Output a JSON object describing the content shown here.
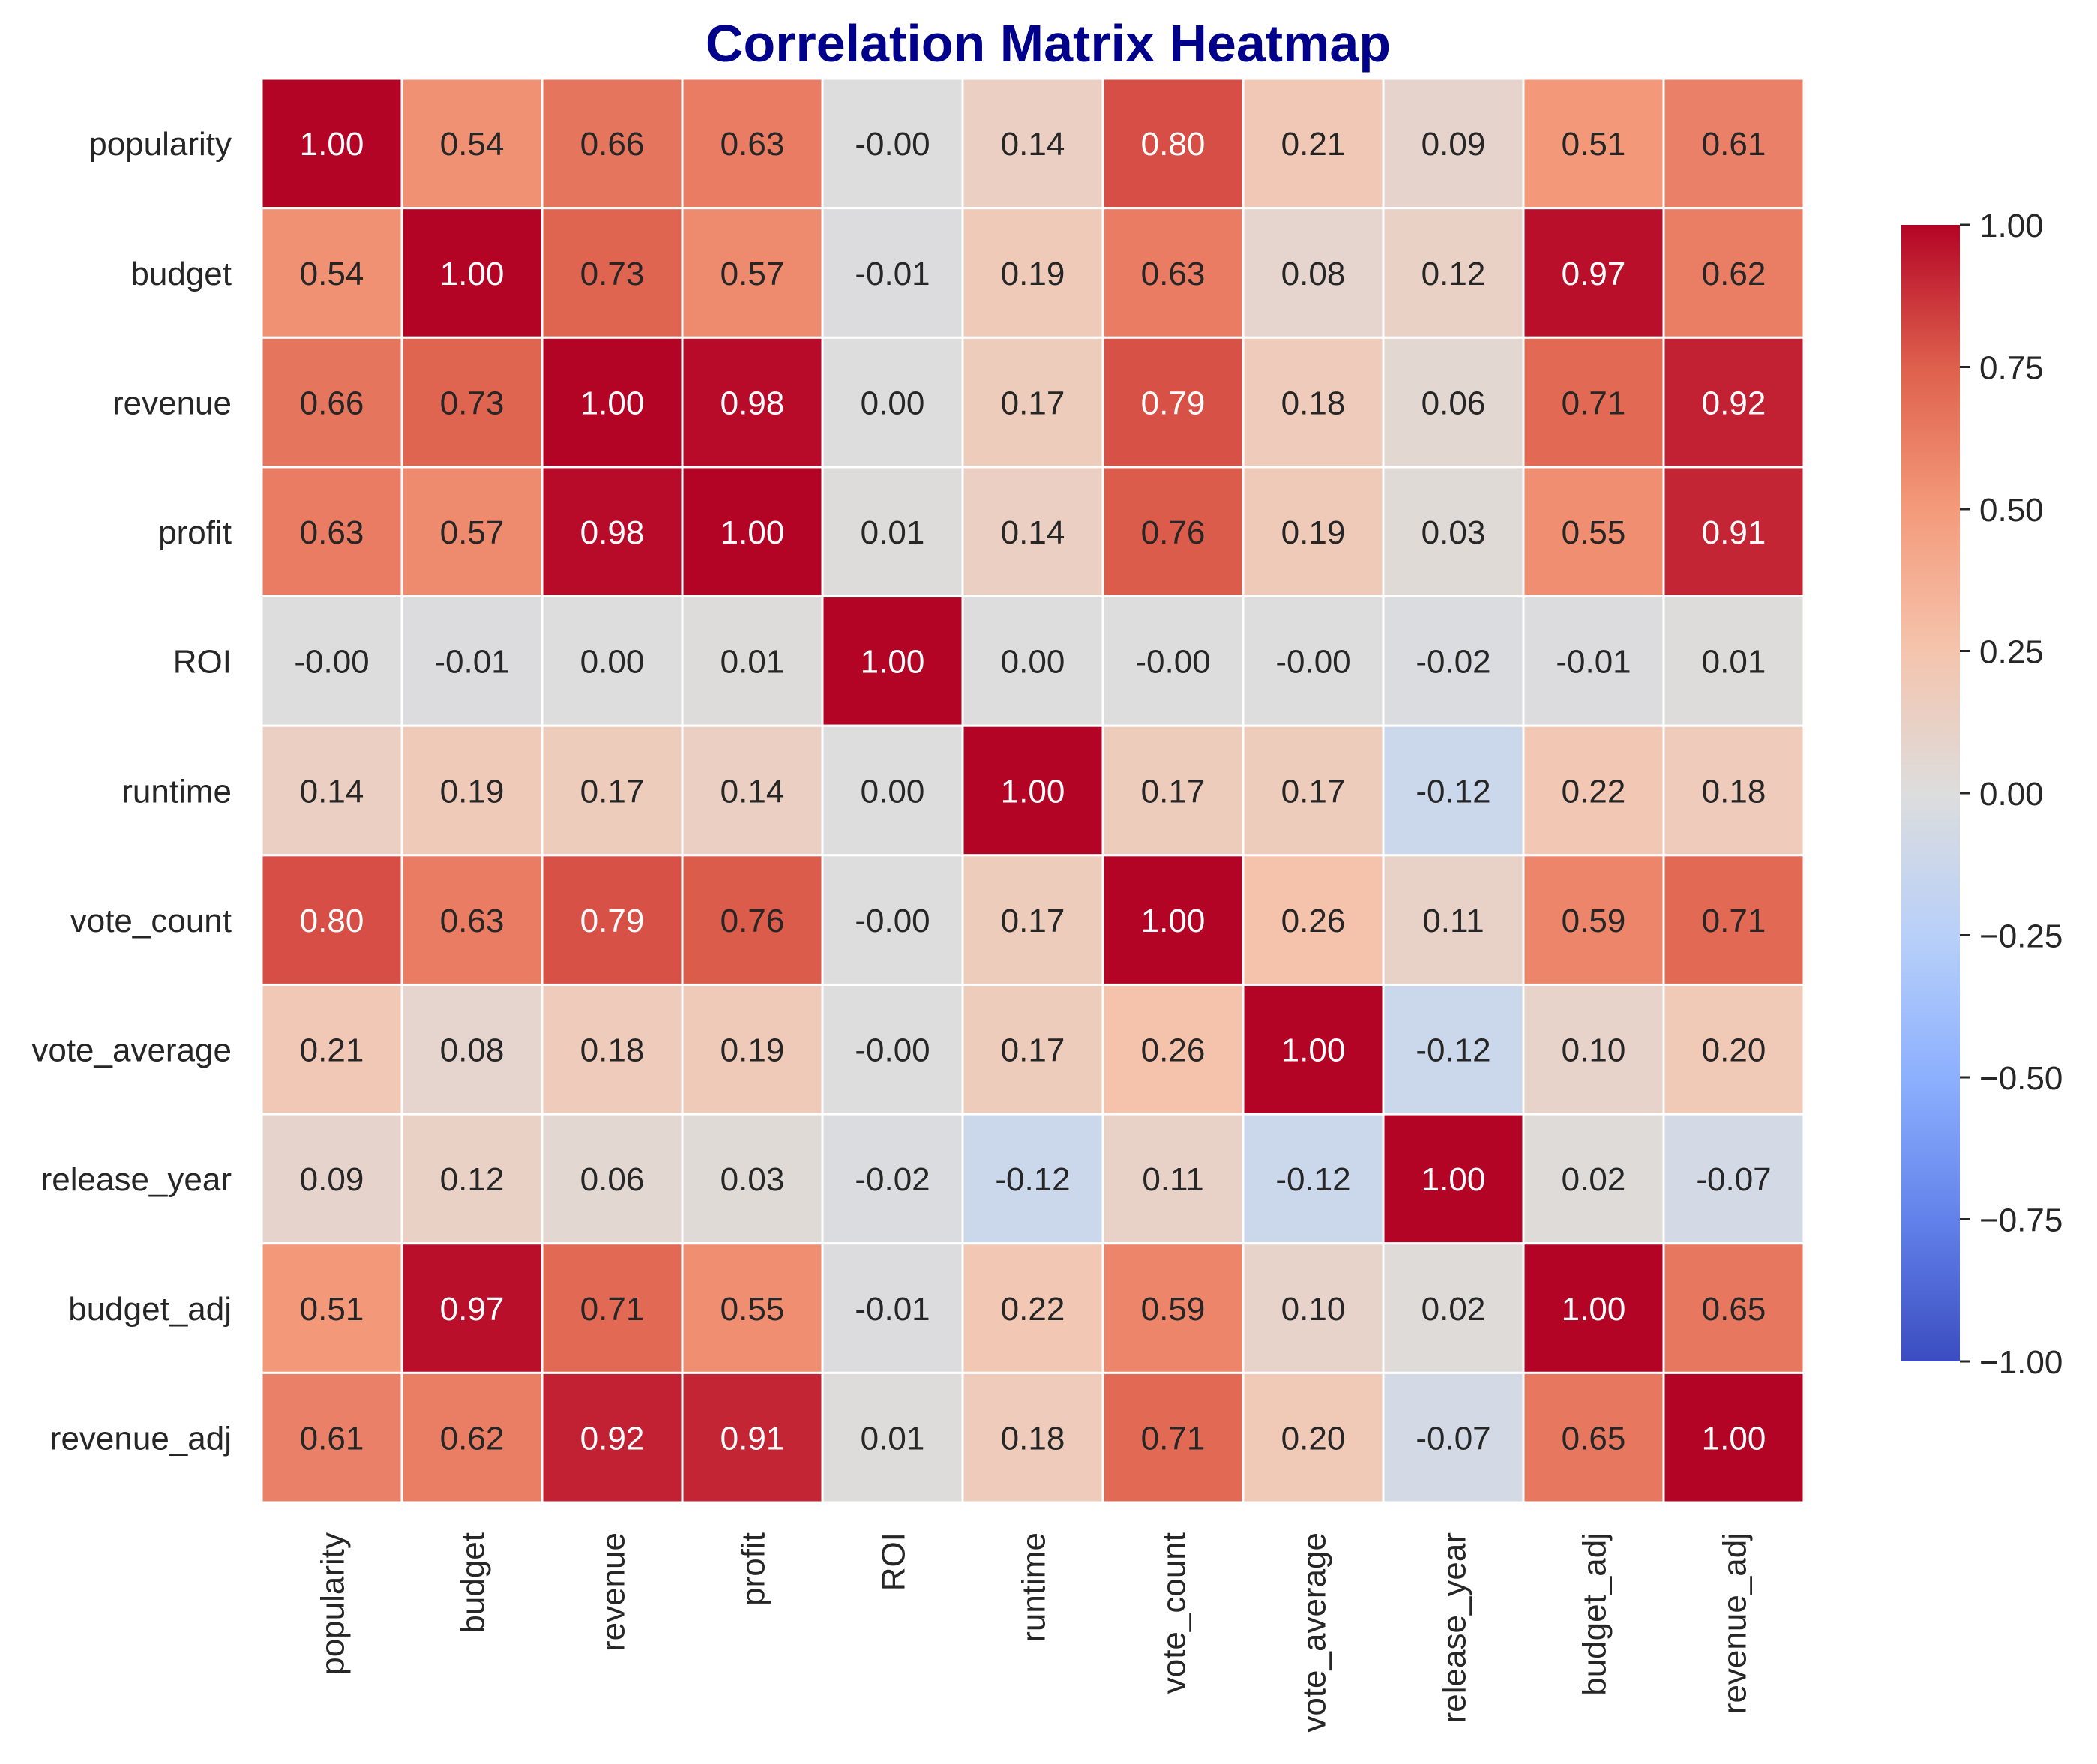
{
  "chart_data": {
    "type": "heatmap",
    "title": "Correlation Matrix Heatmap",
    "title_color": "#00008b",
    "labels": [
      "popularity",
      "budget",
      "revenue",
      "profit",
      "ROI",
      "runtime",
      "vote_count",
      "vote_average",
      "release_year",
      "budget_adj",
      "revenue_adj"
    ],
    "values": [
      [
        1.0,
        0.54,
        0.66,
        0.63,
        -0.0,
        0.14,
        0.8,
        0.21,
        0.09,
        0.51,
        0.61
      ],
      [
        0.54,
        1.0,
        0.73,
        0.57,
        -0.01,
        0.19,
        0.63,
        0.08,
        0.12,
        0.97,
        0.62
      ],
      [
        0.66,
        0.73,
        1.0,
        0.98,
        0.0,
        0.17,
        0.79,
        0.18,
        0.06,
        0.71,
        0.92
      ],
      [
        0.63,
        0.57,
        0.98,
        1.0,
        0.01,
        0.14,
        0.76,
        0.19,
        0.03,
        0.55,
        0.91
      ],
      [
        -0.0,
        -0.01,
        0.0,
        0.01,
        1.0,
        0.0,
        -0.0,
        -0.0,
        -0.02,
        -0.01,
        0.01
      ],
      [
        0.14,
        0.19,
        0.17,
        0.14,
        0.0,
        1.0,
        0.17,
        0.17,
        -0.12,
        0.22,
        0.18
      ],
      [
        0.8,
        0.63,
        0.79,
        0.76,
        -0.0,
        0.17,
        1.0,
        0.26,
        0.11,
        0.59,
        0.71
      ],
      [
        0.21,
        0.08,
        0.18,
        0.19,
        -0.0,
        0.17,
        0.26,
        1.0,
        -0.12,
        0.1,
        0.2
      ],
      [
        0.09,
        0.12,
        0.06,
        0.03,
        -0.02,
        -0.12,
        0.11,
        -0.12,
        1.0,
        0.02,
        -0.07
      ],
      [
        0.51,
        0.97,
        0.71,
        0.55,
        -0.01,
        0.22,
        0.59,
        0.1,
        0.02,
        1.0,
        0.65
      ],
      [
        0.61,
        0.62,
        0.92,
        0.91,
        0.01,
        0.18,
        0.71,
        0.2,
        -0.07,
        0.65,
        1.0
      ]
    ],
    "annotations": [
      [
        "1.00",
        "0.54",
        "0.66",
        "0.63",
        "-0.00",
        "0.14",
        "0.80",
        "0.21",
        "0.09",
        "0.51",
        "0.61"
      ],
      [
        "0.54",
        "1.00",
        "0.73",
        "0.57",
        "-0.01",
        "0.19",
        "0.63",
        "0.08",
        "0.12",
        "0.97",
        "0.62"
      ],
      [
        "0.66",
        "0.73",
        "1.00",
        "0.98",
        "0.00",
        "0.17",
        "0.79",
        "0.18",
        "0.06",
        "0.71",
        "0.92"
      ],
      [
        "0.63",
        "0.57",
        "0.98",
        "1.00",
        "0.01",
        "0.14",
        "0.76",
        "0.19",
        "0.03",
        "0.55",
        "0.91"
      ],
      [
        "-0.00",
        "-0.01",
        "0.00",
        "0.01",
        "1.00",
        "0.00",
        "-0.00",
        "-0.00",
        "-0.02",
        "-0.01",
        "0.01"
      ],
      [
        "0.14",
        "0.19",
        "0.17",
        "0.14",
        "0.00",
        "1.00",
        "0.17",
        "0.17",
        "-0.12",
        "0.22",
        "0.18"
      ],
      [
        "0.80",
        "0.63",
        "0.79",
        "0.76",
        "-0.00",
        "0.17",
        "1.00",
        "0.26",
        "0.11",
        "0.59",
        "0.71"
      ],
      [
        "0.21",
        "0.08",
        "0.18",
        "0.19",
        "-0.00",
        "0.17",
        "0.26",
        "1.00",
        "-0.12",
        "0.10",
        "0.20"
      ],
      [
        "0.09",
        "0.12",
        "0.06",
        "0.03",
        "-0.02",
        "-0.12",
        "0.11",
        "-0.12",
        "1.00",
        "0.02",
        "-0.07"
      ],
      [
        "0.51",
        "0.97",
        "0.71",
        "0.55",
        "-0.01",
        "0.22",
        "0.59",
        "0.10",
        "0.02",
        "1.00",
        "0.65"
      ],
      [
        "0.61",
        "0.62",
        "0.92",
        "0.91",
        "0.01",
        "0.18",
        "0.71",
        "0.20",
        "-0.07",
        "0.65",
        "1.00"
      ]
    ],
    "colormap": "coolwarm",
    "vmin": -1.0,
    "vmax": 1.0,
    "colorbar_ticks": [
      1.0,
      0.75,
      0.5,
      0.25,
      0.0,
      -0.25,
      -0.5,
      -0.75,
      -1.0
    ],
    "colorbar_tick_labels": [
      "1.00",
      "0.75",
      "0.50",
      "0.25",
      "0.00",
      "−0.25",
      "−0.50",
      "−0.75",
      "−1.00"
    ],
    "grid_lines": "white",
    "legend": "colorbar-right"
  }
}
